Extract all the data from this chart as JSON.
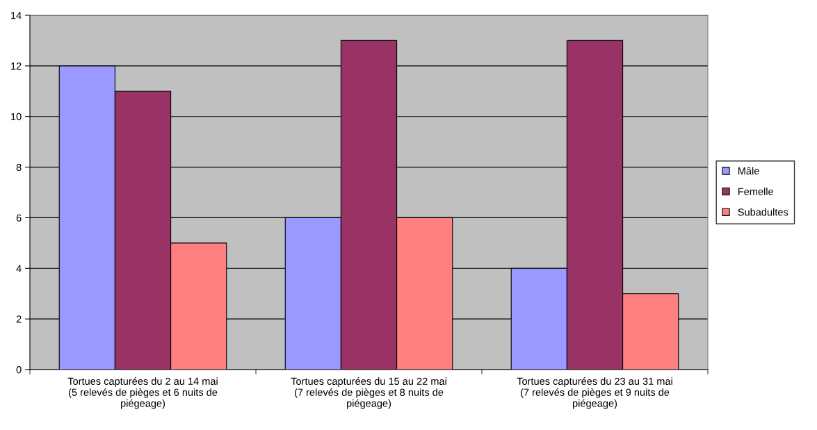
{
  "chart_data": {
    "type": "bar",
    "categories": [
      "Tortues capturées du 2 au 14 mai\n(5 relevés de pièges et 6 nuits de\npiégeage)",
      "Tortues capturées du 15 au 22 mai\n(7 relevés de pièges et 8 nuits de\npiégeage)",
      "Tortues capturées du 23 au 31 mai\n(7 relevés de pièges et 9 nuits de\npiégeage)"
    ],
    "series": [
      {
        "name": "Mâle",
        "color": "#9999ff",
        "values": [
          12,
          6,
          4
        ]
      },
      {
        "name": "Femelle",
        "color": "#993366",
        "values": [
          11,
          13,
          13
        ]
      },
      {
        "name": "Subadultes",
        "color": "#ff8080",
        "values": [
          5,
          6,
          3
        ]
      }
    ],
    "ylim": [
      0,
      14
    ],
    "yticks": [
      0,
      2,
      4,
      6,
      8,
      10,
      12,
      14
    ],
    "grid": "y",
    "legend": "right"
  }
}
